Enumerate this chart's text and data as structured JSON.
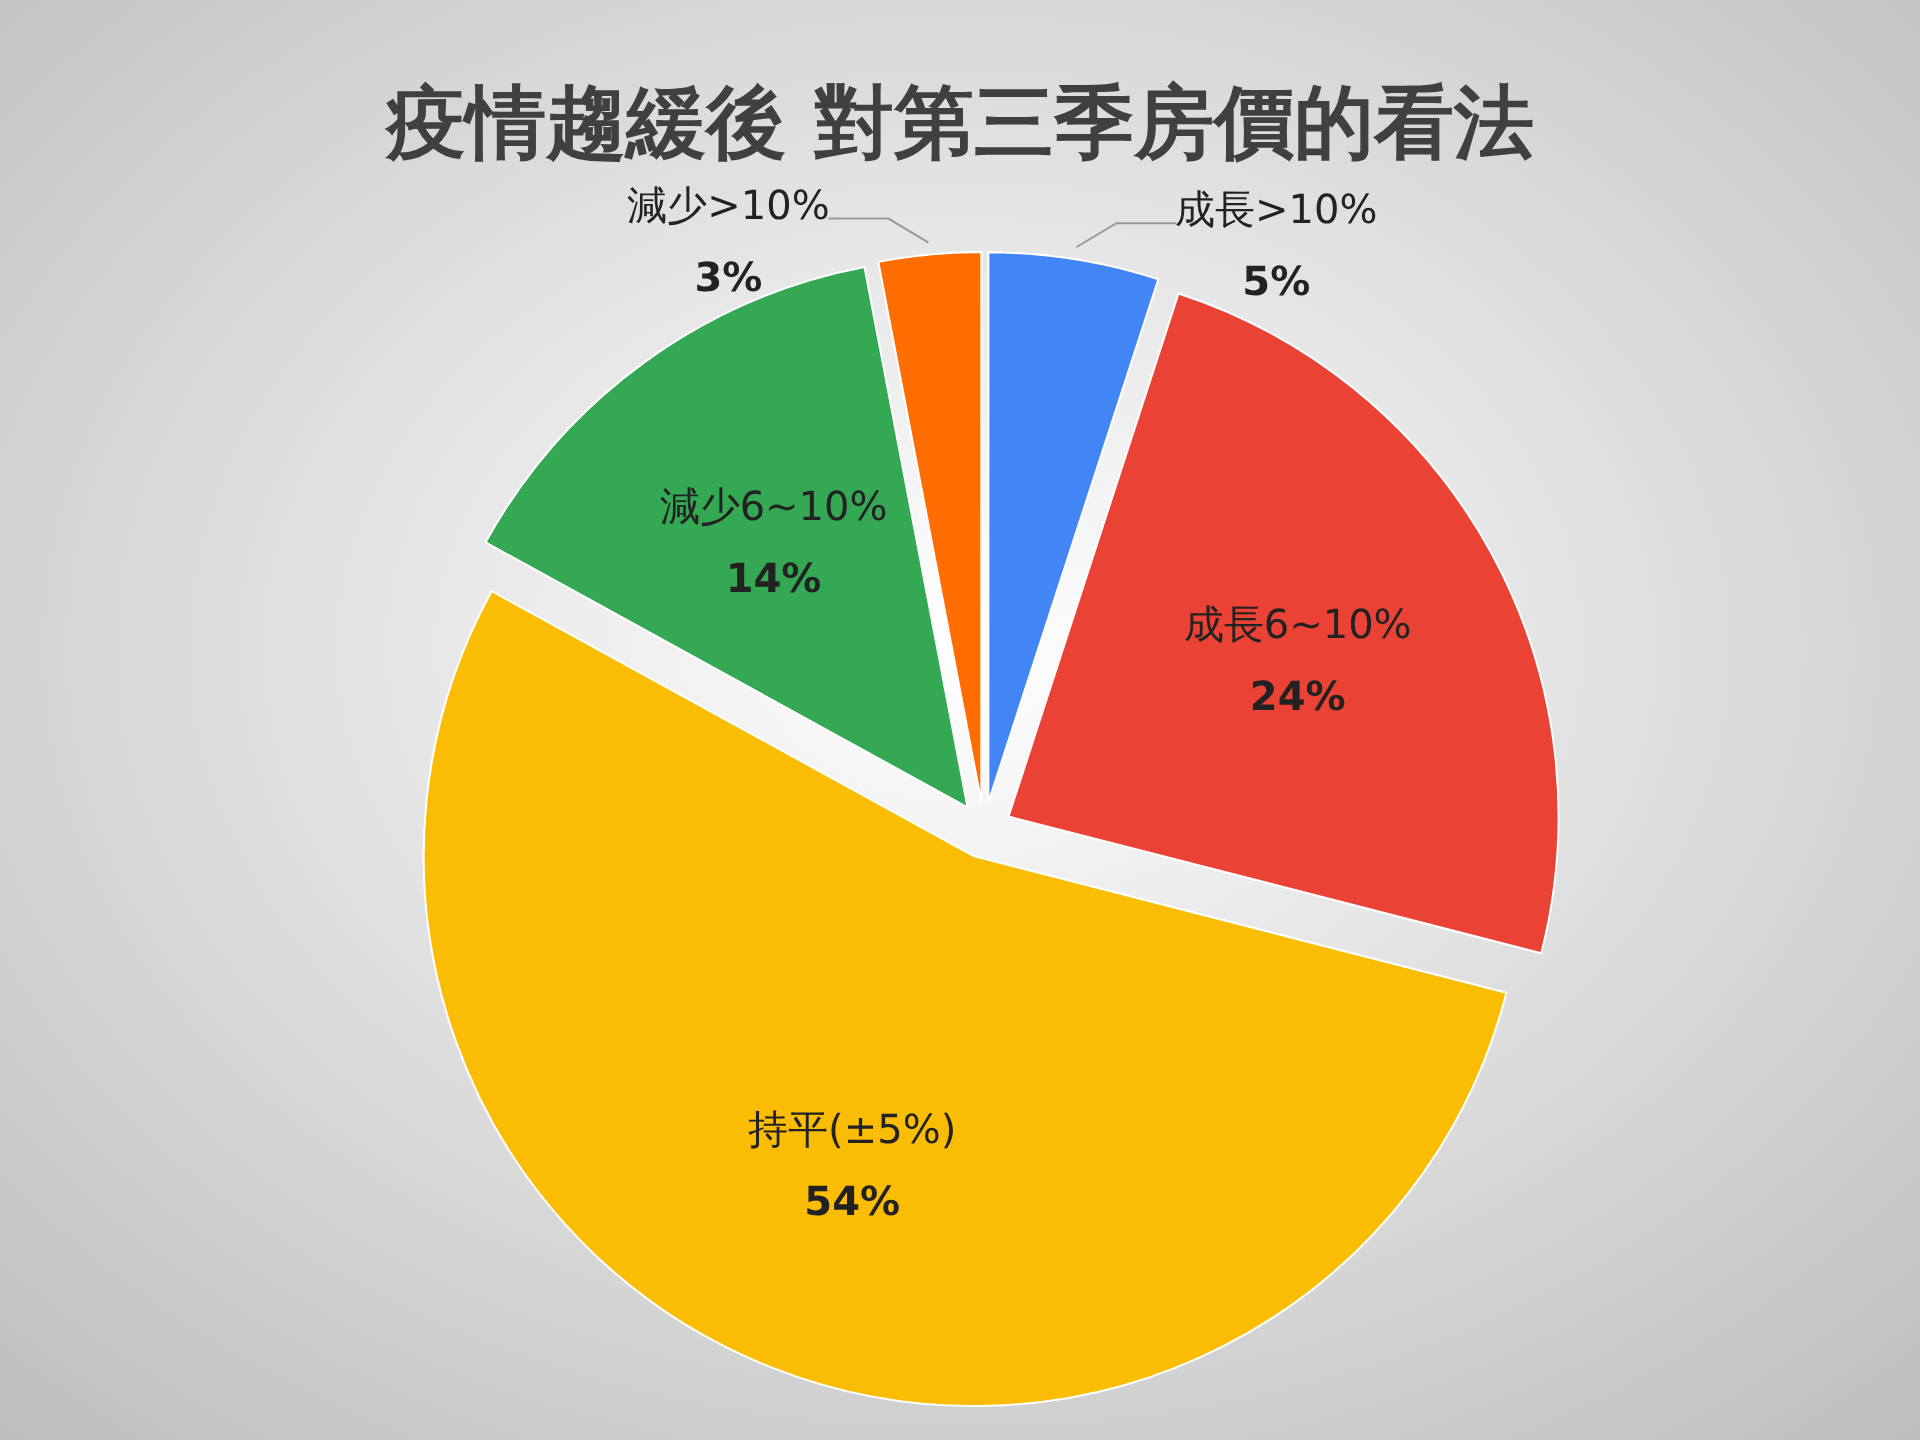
{
  "chart_data": {
    "type": "pie",
    "title": "疫情趨緩後 對第三季房價的看法",
    "categories": [
      "成長>10%",
      "成長6~10%",
      "持平(±5%)",
      "減少6~10%",
      "減少>10%"
    ],
    "values": [
      5,
      24,
      54,
      14,
      3
    ],
    "colors": [
      "#4285f4",
      "#ea4335",
      "#fbbc04",
      "#34a853",
      "#ff6d01"
    ],
    "value_labels": [
      "5%",
      "24%",
      "54%",
      "14%",
      "3%"
    ]
  }
}
